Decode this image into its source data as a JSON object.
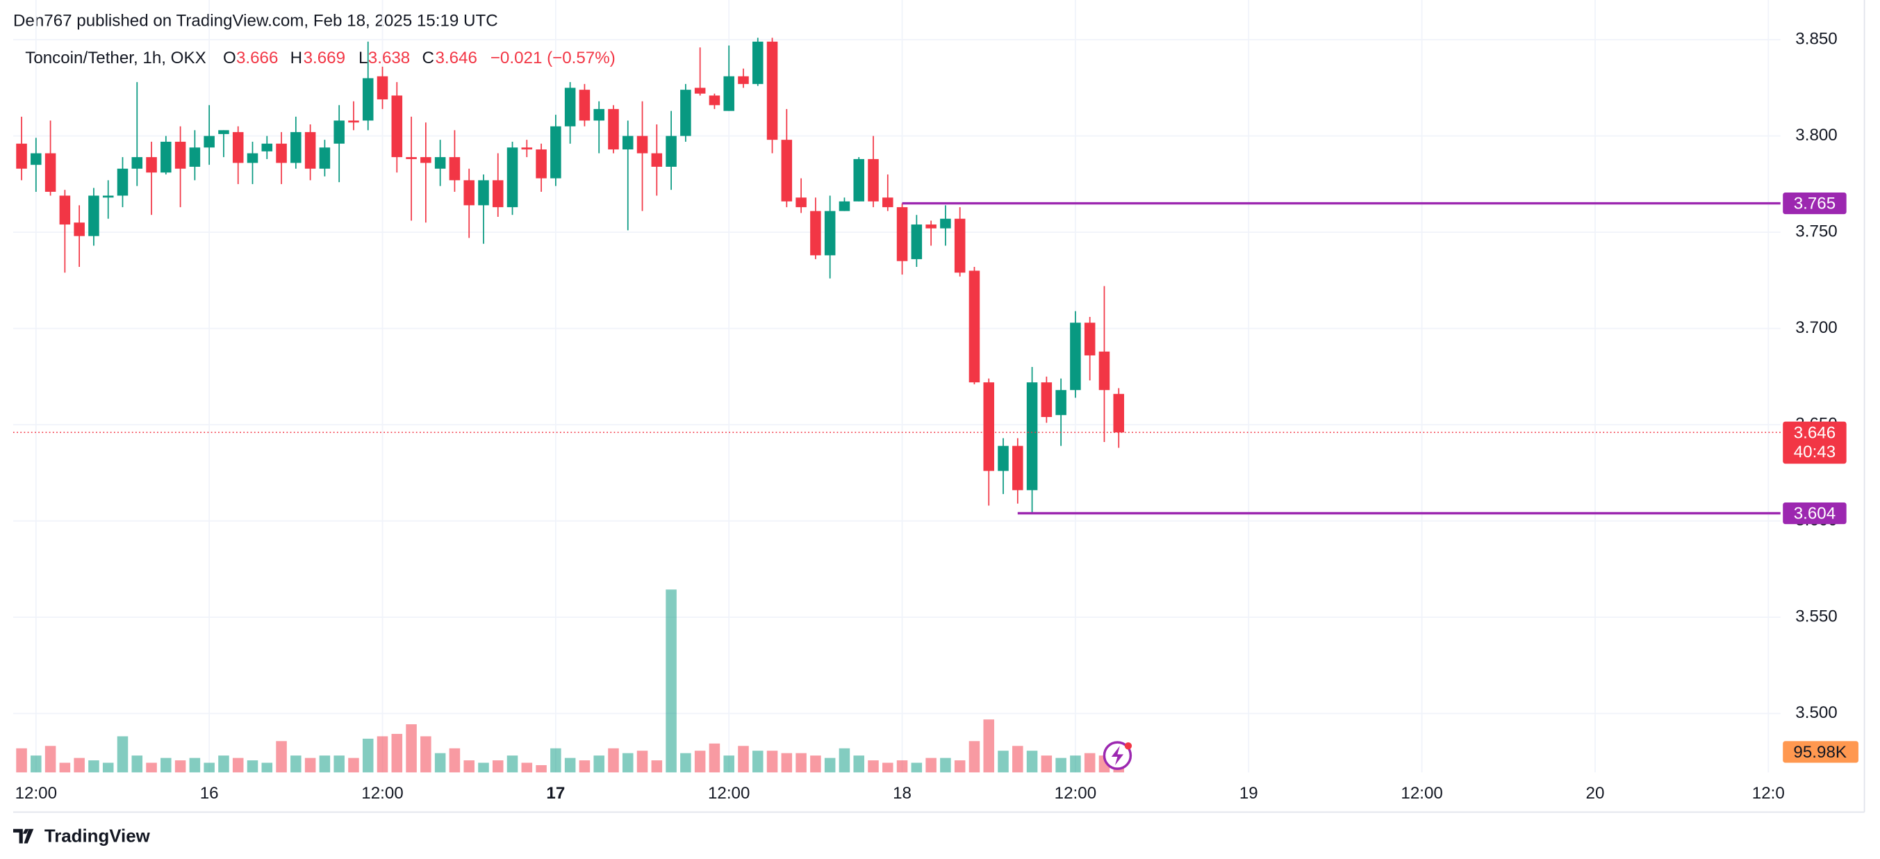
{
  "header": {
    "text": "Den767 published on TradingView.com, Feb 18, 2025 15:19 UTC"
  },
  "footer": {
    "brand": "TradingView"
  },
  "chart_data": {
    "type": "candlestick",
    "title": "Toncoin/Tether, 1h, OKX",
    "legend": [
      {
        "key": "O",
        "value": 3.666
      },
      {
        "key": "H",
        "value": 3.669
      },
      {
        "key": "L",
        "value": 3.638
      },
      {
        "key": "C",
        "value": 3.646
      }
    ],
    "change": {
      "value": -0.021,
      "label": "−0.021 (−0.57%)"
    },
    "up_color": "#089981",
    "down_color": "#f23645",
    "open": [
      3.796,
      3.785,
      3.791,
      3.769,
      3.755,
      3.748,
      3.768,
      3.769,
      3.783,
      3.789,
      3.781,
      3.797,
      3.784,
      3.794,
      3.801,
      3.802,
      3.786,
      3.792,
      3.796,
      3.786,
      3.802,
      3.783,
      3.796,
      3.808,
      3.808,
      3.831,
      3.821,
      3.789,
      3.789,
      3.783,
      3.789,
      3.777,
      3.764,
      3.777,
      3.763,
      3.794,
      3.793,
      3.778,
      3.805,
      3.824,
      3.808,
      3.814,
      3.793,
      3.8,
      3.791,
      3.784,
      3.8,
      3.825,
      3.821,
      3.813,
      3.831,
      3.827,
      3.849,
      3.798,
      3.768,
      3.761,
      3.738,
      3.761,
      3.766,
      3.788,
      3.768,
      3.763,
      3.736,
      3.754,
      3.752,
      3.757,
      3.73,
      3.672,
      3.626,
      3.639,
      3.616,
      3.672,
      3.655,
      3.668,
      3.703,
      3.688,
      3.666
    ],
    "high": [
      3.81,
      3.799,
      3.808,
      3.772,
      3.764,
      3.773,
      3.777,
      3.789,
      3.828,
      3.797,
      3.8,
      3.805,
      3.803,
      3.816,
      3.803,
      3.805,
      3.797,
      3.8,
      3.802,
      3.81,
      3.806,
      3.798,
      3.816,
      3.818,
      3.849,
      3.836,
      3.828,
      3.81,
      3.807,
      3.798,
      3.803,
      3.783,
      3.78,
      3.791,
      3.797,
      3.798,
      3.796,
      3.811,
      3.828,
      3.827,
      3.818,
      3.816,
      3.808,
      3.818,
      3.806,
      3.813,
      3.827,
      3.846,
      3.822,
      3.847,
      3.835,
      3.851,
      3.851,
      3.814,
      3.778,
      3.768,
      3.769,
      3.768,
      3.789,
      3.8,
      3.78,
      3.765,
      3.759,
      3.756,
      3.764,
      3.763,
      3.732,
      3.674,
      3.643,
      3.643,
      3.68,
      3.675,
      3.674,
      3.709,
      3.706,
      3.722,
      3.669
    ],
    "low": [
      3.777,
      3.771,
      3.769,
      3.729,
      3.732,
      3.743,
      3.757,
      3.763,
      3.774,
      3.759,
      3.78,
      3.763,
      3.777,
      3.785,
      3.789,
      3.775,
      3.775,
      3.788,
      3.775,
      3.783,
      3.777,
      3.779,
      3.776,
      3.803,
      3.803,
      3.814,
      3.781,
      3.756,
      3.755,
      3.774,
      3.771,
      3.747,
      3.744,
      3.758,
      3.759,
      3.789,
      3.771,
      3.774,
      3.796,
      3.805,
      3.791,
      3.791,
      3.751,
      3.761,
      3.769,
      3.772,
      3.797,
      3.821,
      3.814,
      3.813,
      3.825,
      3.826,
      3.791,
      3.763,
      3.76,
      3.736,
      3.726,
      3.761,
      3.766,
      3.763,
      3.761,
      3.728,
      3.732,
      3.743,
      3.743,
      3.727,
      3.671,
      3.608,
      3.614,
      3.609,
      3.604,
      3.651,
      3.639,
      3.664,
      3.673,
      3.641,
      3.638
    ],
    "close": [
      3.783,
      3.791,
      3.771,
      3.754,
      3.748,
      3.769,
      3.769,
      3.783,
      3.789,
      3.781,
      3.797,
      3.783,
      3.794,
      3.8,
      3.803,
      3.786,
      3.791,
      3.796,
      3.786,
      3.802,
      3.783,
      3.794,
      3.808,
      3.807,
      3.83,
      3.819,
      3.789,
      3.788,
      3.786,
      3.789,
      3.777,
      3.764,
      3.777,
      3.763,
      3.794,
      3.793,
      3.778,
      3.805,
      3.825,
      3.808,
      3.814,
      3.793,
      3.8,
      3.791,
      3.784,
      3.8,
      3.824,
      3.822,
      3.816,
      3.831,
      3.827,
      3.849,
      3.798,
      3.766,
      3.763,
      3.738,
      3.761,
      3.766,
      3.788,
      3.766,
      3.763,
      3.735,
      3.754,
      3.752,
      3.757,
      3.729,
      3.672,
      3.626,
      3.639,
      3.616,
      3.672,
      3.654,
      3.668,
      3.703,
      3.686,
      3.668,
      3.646
    ],
    "volume": [
      113000,
      79100,
      124300,
      45200,
      67800,
      56500,
      45200,
      169500,
      79100,
      45200,
      67800,
      56500,
      67800,
      45200,
      79100,
      67800,
      56500,
      45200,
      146900,
      79100,
      67800,
      79100,
      79100,
      67800,
      158200,
      169500,
      180800,
      226000,
      169500,
      90400,
      113000,
      56500,
      45200,
      56500,
      79100,
      45200,
      33900,
      113000,
      67800,
      56500,
      79100,
      113000,
      90400,
      101700,
      56500,
      858800,
      90400,
      101700,
      135600,
      79100,
      124300,
      101700,
      101700,
      90400,
      90400,
      79100,
      67800,
      113000,
      79100,
      56500,
      45200,
      56500,
      45200,
      67800,
      67800,
      56500,
      146900,
      248600,
      101700,
      124300,
      101700,
      79100,
      67800,
      79100,
      90400,
      79100,
      56500
    ],
    "volume_lim": [
      0,
      860000
    ],
    "volume_label": {
      "value": 95980,
      "label": "95.98K"
    },
    "volume_label_color": "#ff9850",
    "xlim": [
      -0.58,
      121.84
    ],
    "xticks": [
      {
        "value": 1,
        "label": "12:00"
      },
      {
        "value": 13,
        "label": "16"
      },
      {
        "value": 25,
        "label": "12:00"
      },
      {
        "value": 37,
        "label": "17"
      },
      {
        "value": 49,
        "label": "12:00"
      },
      {
        "value": 61,
        "label": "18"
      },
      {
        "value": 73,
        "label": "12:00"
      },
      {
        "value": 85,
        "label": "19"
      },
      {
        "value": 97,
        "label": "12:00"
      },
      {
        "value": 109,
        "label": "20"
      },
      {
        "value": 121,
        "label": "12:0"
      }
    ],
    "ylim": [
      3.4694,
      3.87
    ],
    "yticks": [
      {
        "value": 3.5,
        "label": "3.500"
      },
      {
        "value": 3.55,
        "label": "3.550"
      },
      {
        "value": 3.6,
        "label": "3.600"
      },
      {
        "value": 3.65,
        "label": "3.650"
      },
      {
        "value": 3.7,
        "label": "3.700"
      },
      {
        "value": 3.75,
        "label": "3.750"
      },
      {
        "value": 3.8,
        "label": "3.800"
      },
      {
        "value": 3.85,
        "label": "3.850"
      }
    ],
    "grid": true,
    "hlines": [
      {
        "value": 3.765,
        "from": 61,
        "color": "#9c27b0"
      },
      {
        "value": 3.604,
        "from": 69,
        "color": "#9c27b0"
      }
    ],
    "last_price": 3.646,
    "countdown": "40:43"
  }
}
